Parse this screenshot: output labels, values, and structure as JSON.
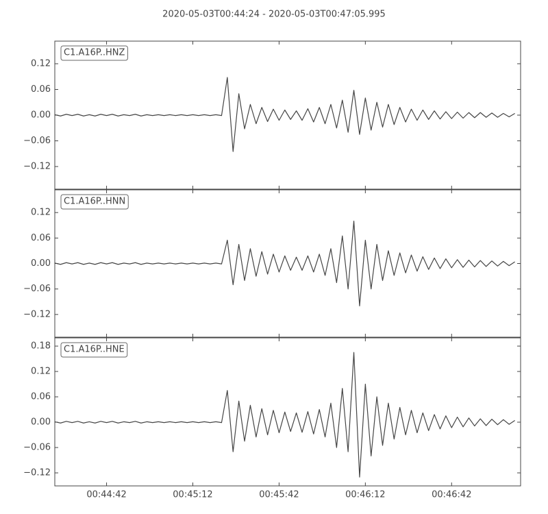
{
  "title": "2020-05-03T00:44:24  -  2020-05-03T00:47:05.995",
  "chart_data": [
    {
      "type": "line",
      "x": [
        2664,
        2666,
        2668,
        2670,
        2672,
        2674,
        2676,
        2678,
        2680,
        2682,
        2684,
        2686,
        2688,
        2690,
        2692,
        2694,
        2696,
        2698,
        2700,
        2702,
        2704,
        2706,
        2708,
        2710,
        2712,
        2714,
        2716,
        2718,
        2720,
        2722,
        2724,
        2726,
        2728,
        2730,
        2732,
        2734,
        2736,
        2738,
        2740,
        2742,
        2744,
        2746,
        2748,
        2750,
        2752,
        2754,
        2756,
        2758,
        2760,
        2762,
        2764,
        2766,
        2768,
        2770,
        2772,
        2774,
        2776,
        2778,
        2780,
        2782,
        2784,
        2786,
        2788,
        2790,
        2792,
        2794,
        2796,
        2798,
        2800,
        2802,
        2804,
        2806,
        2808,
        2810,
        2812,
        2814,
        2816,
        2818,
        2820,
        2822,
        2824
      ],
      "series": [
        {
          "name": "C1.A16P..HNZ",
          "color": "#444444",
          "values": [
            0.001,
            -0.002,
            0.002,
            -0.001,
            0.002,
            -0.002,
            0.001,
            -0.002,
            0.002,
            -0.001,
            0.002,
            -0.002,
            0.001,
            -0.001,
            0.002,
            -0.002,
            0.001,
            -0.001,
            0.001,
            -0.001,
            0.001,
            -0.001,
            0.001,
            -0.001,
            0.001,
            -0.001,
            0.001,
            -0.001,
            0.001,
            -0.001,
            0.088,
            -0.085,
            0.05,
            -0.032,
            0.025,
            -0.02,
            0.018,
            -0.015,
            0.014,
            -0.012,
            0.012,
            -0.01,
            0.01,
            -0.012,
            0.015,
            -0.016,
            0.018,
            -0.02,
            0.025,
            -0.03,
            0.035,
            -0.04,
            0.058,
            -0.045,
            0.04,
            -0.035,
            0.03,
            -0.028,
            0.025,
            -0.022,
            0.018,
            -0.016,
            0.014,
            -0.012,
            0.012,
            -0.01,
            0.01,
            -0.009,
            0.008,
            -0.008,
            0.007,
            -0.007,
            0.006,
            -0.006,
            0.006,
            -0.005,
            0.005,
            -0.005,
            0.004,
            -0.004,
            0.004
          ]
        }
      ],
      "xlim": [
        2664,
        2825.995
      ],
      "ylim": [
        -0.1728,
        0.1728
      ],
      "yticks": [
        0.12,
        0.06,
        {
          "value": 0,
          "label": "0.00"
        },
        {
          "value": -0.06,
          "label": "−0.06"
        },
        {
          "value": -0.12,
          "label": "−0.12"
        }
      ]
    },
    {
      "type": "line",
      "x": [
        2664,
        2666,
        2668,
        2670,
        2672,
        2674,
        2676,
        2678,
        2680,
        2682,
        2684,
        2686,
        2688,
        2690,
        2692,
        2694,
        2696,
        2698,
        2700,
        2702,
        2704,
        2706,
        2708,
        2710,
        2712,
        2714,
        2716,
        2718,
        2720,
        2722,
        2724,
        2726,
        2728,
        2730,
        2732,
        2734,
        2736,
        2738,
        2740,
        2742,
        2744,
        2746,
        2748,
        2750,
        2752,
        2754,
        2756,
        2758,
        2760,
        2762,
        2764,
        2766,
        2768,
        2770,
        2772,
        2774,
        2776,
        2778,
        2780,
        2782,
        2784,
        2786,
        2788,
        2790,
        2792,
        2794,
        2796,
        2798,
        2800,
        2802,
        2804,
        2806,
        2808,
        2810,
        2812,
        2814,
        2816,
        2818,
        2820,
        2822,
        2824
      ],
      "series": [
        {
          "name": "C1.A16P..HNN",
          "color": "#444444",
          "values": [
            0.001,
            -0.002,
            0.002,
            -0.001,
            0.002,
            -0.002,
            0.001,
            -0.002,
            0.002,
            -0.001,
            0.002,
            -0.002,
            0.001,
            -0.001,
            0.002,
            -0.002,
            0.001,
            -0.001,
            0.001,
            -0.001,
            0.001,
            -0.001,
            0.001,
            -0.001,
            0.001,
            -0.001,
            0.001,
            -0.001,
            0.001,
            -0.001,
            0.055,
            -0.05,
            0.045,
            -0.04,
            0.035,
            -0.03,
            0.028,
            -0.025,
            0.022,
            -0.02,
            0.018,
            -0.016,
            0.015,
            -0.016,
            0.018,
            -0.02,
            0.022,
            -0.028,
            0.035,
            -0.045,
            0.065,
            -0.06,
            0.1,
            -0.1,
            0.055,
            -0.06,
            0.045,
            -0.04,
            0.03,
            -0.028,
            0.025,
            -0.022,
            0.02,
            -0.018,
            0.016,
            -0.014,
            0.013,
            -0.012,
            0.011,
            -0.01,
            0.009,
            -0.009,
            0.008,
            -0.008,
            0.007,
            -0.007,
            0.006,
            -0.006,
            0.005,
            -0.005,
            0.004
          ]
        }
      ],
      "xlim": [
        2664,
        2825.995
      ],
      "ylim": [
        -0.1735,
        0.1735
      ],
      "yticks": [
        0.12,
        0.06,
        {
          "value": 0,
          "label": "0.00"
        },
        {
          "value": -0.06,
          "label": "−0.06"
        },
        {
          "value": -0.12,
          "label": "−0.12"
        }
      ]
    },
    {
      "type": "line",
      "x": [
        2664,
        2666,
        2668,
        2670,
        2672,
        2674,
        2676,
        2678,
        2680,
        2682,
        2684,
        2686,
        2688,
        2690,
        2692,
        2694,
        2696,
        2698,
        2700,
        2702,
        2704,
        2706,
        2708,
        2710,
        2712,
        2714,
        2716,
        2718,
        2720,
        2722,
        2724,
        2726,
        2728,
        2730,
        2732,
        2734,
        2736,
        2738,
        2740,
        2742,
        2744,
        2746,
        2748,
        2750,
        2752,
        2754,
        2756,
        2758,
        2760,
        2762,
        2764,
        2766,
        2768,
        2770,
        2772,
        2774,
        2776,
        2778,
        2780,
        2782,
        2784,
        2786,
        2788,
        2790,
        2792,
        2794,
        2796,
        2798,
        2800,
        2802,
        2804,
        2806,
        2808,
        2810,
        2812,
        2814,
        2816,
        2818,
        2820,
        2822,
        2824
      ],
      "series": [
        {
          "name": "C1.A16P..HNE",
          "color": "#444444",
          "values": [
            0.001,
            -0.002,
            0.002,
            -0.001,
            0.002,
            -0.002,
            0.001,
            -0.002,
            0.002,
            -0.001,
            0.002,
            -0.002,
            0.001,
            -0.001,
            0.002,
            -0.002,
            0.001,
            -0.001,
            0.001,
            -0.001,
            0.001,
            -0.001,
            0.001,
            -0.001,
            0.001,
            -0.001,
            0.001,
            -0.001,
            0.001,
            -0.001,
            0.075,
            -0.07,
            0.05,
            -0.045,
            0.04,
            -0.035,
            0.032,
            -0.03,
            0.028,
            -0.025,
            0.024,
            -0.022,
            0.022,
            -0.024,
            0.025,
            -0.028,
            0.03,
            -0.035,
            0.045,
            -0.06,
            0.08,
            -0.07,
            0.165,
            -0.13,
            0.09,
            -0.08,
            0.06,
            -0.055,
            0.045,
            -0.04,
            0.035,
            -0.03,
            0.028,
            -0.025,
            0.022,
            -0.02,
            0.018,
            -0.016,
            0.015,
            -0.013,
            0.012,
            -0.011,
            0.01,
            -0.009,
            0.008,
            -0.008,
            0.007,
            -0.006,
            0.006,
            -0.005,
            0.004
          ]
        }
      ],
      "xlim": [
        2664,
        2825.995
      ],
      "ylim": [
        -0.1508,
        0.1995
      ],
      "yticks": [
        0.18,
        0.12,
        0.06,
        {
          "value": 0,
          "label": "0.00"
        },
        {
          "value": -0.06,
          "label": "−0.06"
        },
        {
          "value": -0.12,
          "label": "−0.12"
        }
      ],
      "xticks": [
        {
          "value": 2682,
          "label": "00:44:42"
        },
        {
          "value": 2712,
          "label": "00:45:12"
        },
        {
          "value": 2742,
          "label": "00:45:42"
        },
        {
          "value": 2772,
          "label": "00:46:12"
        },
        {
          "value": 2802,
          "label": "00:46:42"
        }
      ]
    }
  ]
}
